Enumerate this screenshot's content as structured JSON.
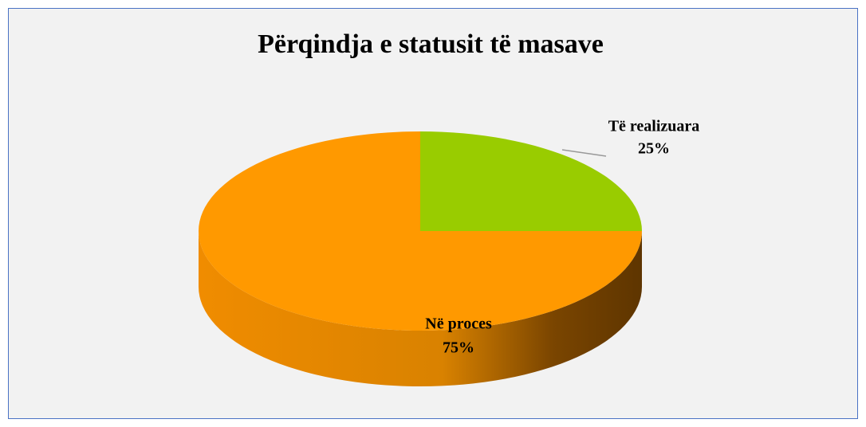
{
  "chart_data": {
    "type": "pie",
    "title": "Përqindja e statusit të masave",
    "categories": [
      "Të realizuara",
      "Në proces"
    ],
    "values": [
      25,
      75
    ],
    "value_labels": [
      "25%",
      "75%"
    ],
    "colors": [
      "#99cc00",
      "#ff9900"
    ]
  }
}
